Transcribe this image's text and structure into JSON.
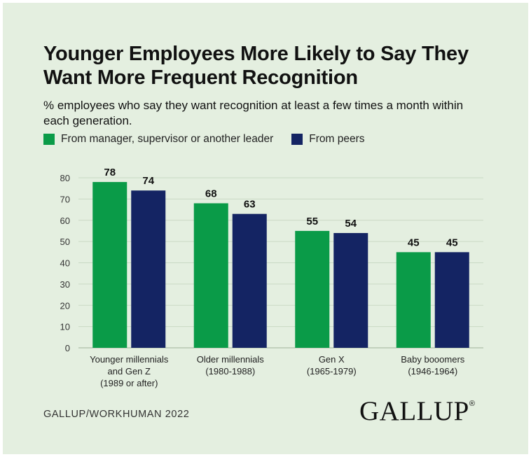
{
  "chart_data": {
    "type": "bar",
    "title": "Younger Employees More Likely to Say They Want More Frequent Recognition",
    "subtitle": "% employees who say they want recognition at least a few times a month within each generation.",
    "categories": [
      [
        "Younger millennials",
        "and Gen Z",
        "(1989 or after)"
      ],
      [
        "Older millennials",
        "(1980-1988)"
      ],
      [
        "Gen X",
        "(1965-1979)"
      ],
      [
        "Baby booomers",
        "(1946-1964)"
      ]
    ],
    "series": [
      {
        "name": "From manager, supervisor or another leader",
        "color": "#0a9b48",
        "values": [
          78,
          68,
          55,
          45
        ]
      },
      {
        "name": "From peers",
        "color": "#142463",
        "values": [
          74,
          63,
          54,
          45
        ]
      }
    ],
    "yticks": [
      0,
      10,
      20,
      30,
      40,
      50,
      60,
      70,
      80
    ],
    "ylim": [
      0,
      80
    ],
    "grid": true,
    "legend_position": "top-left"
  },
  "source": "GALLUP/WORKHUMAN 2022",
  "logo": {
    "text": "GALLUP",
    "mark": "®"
  },
  "colors": {
    "background": "#e4efe0",
    "grid": "#c9d9c4"
  }
}
